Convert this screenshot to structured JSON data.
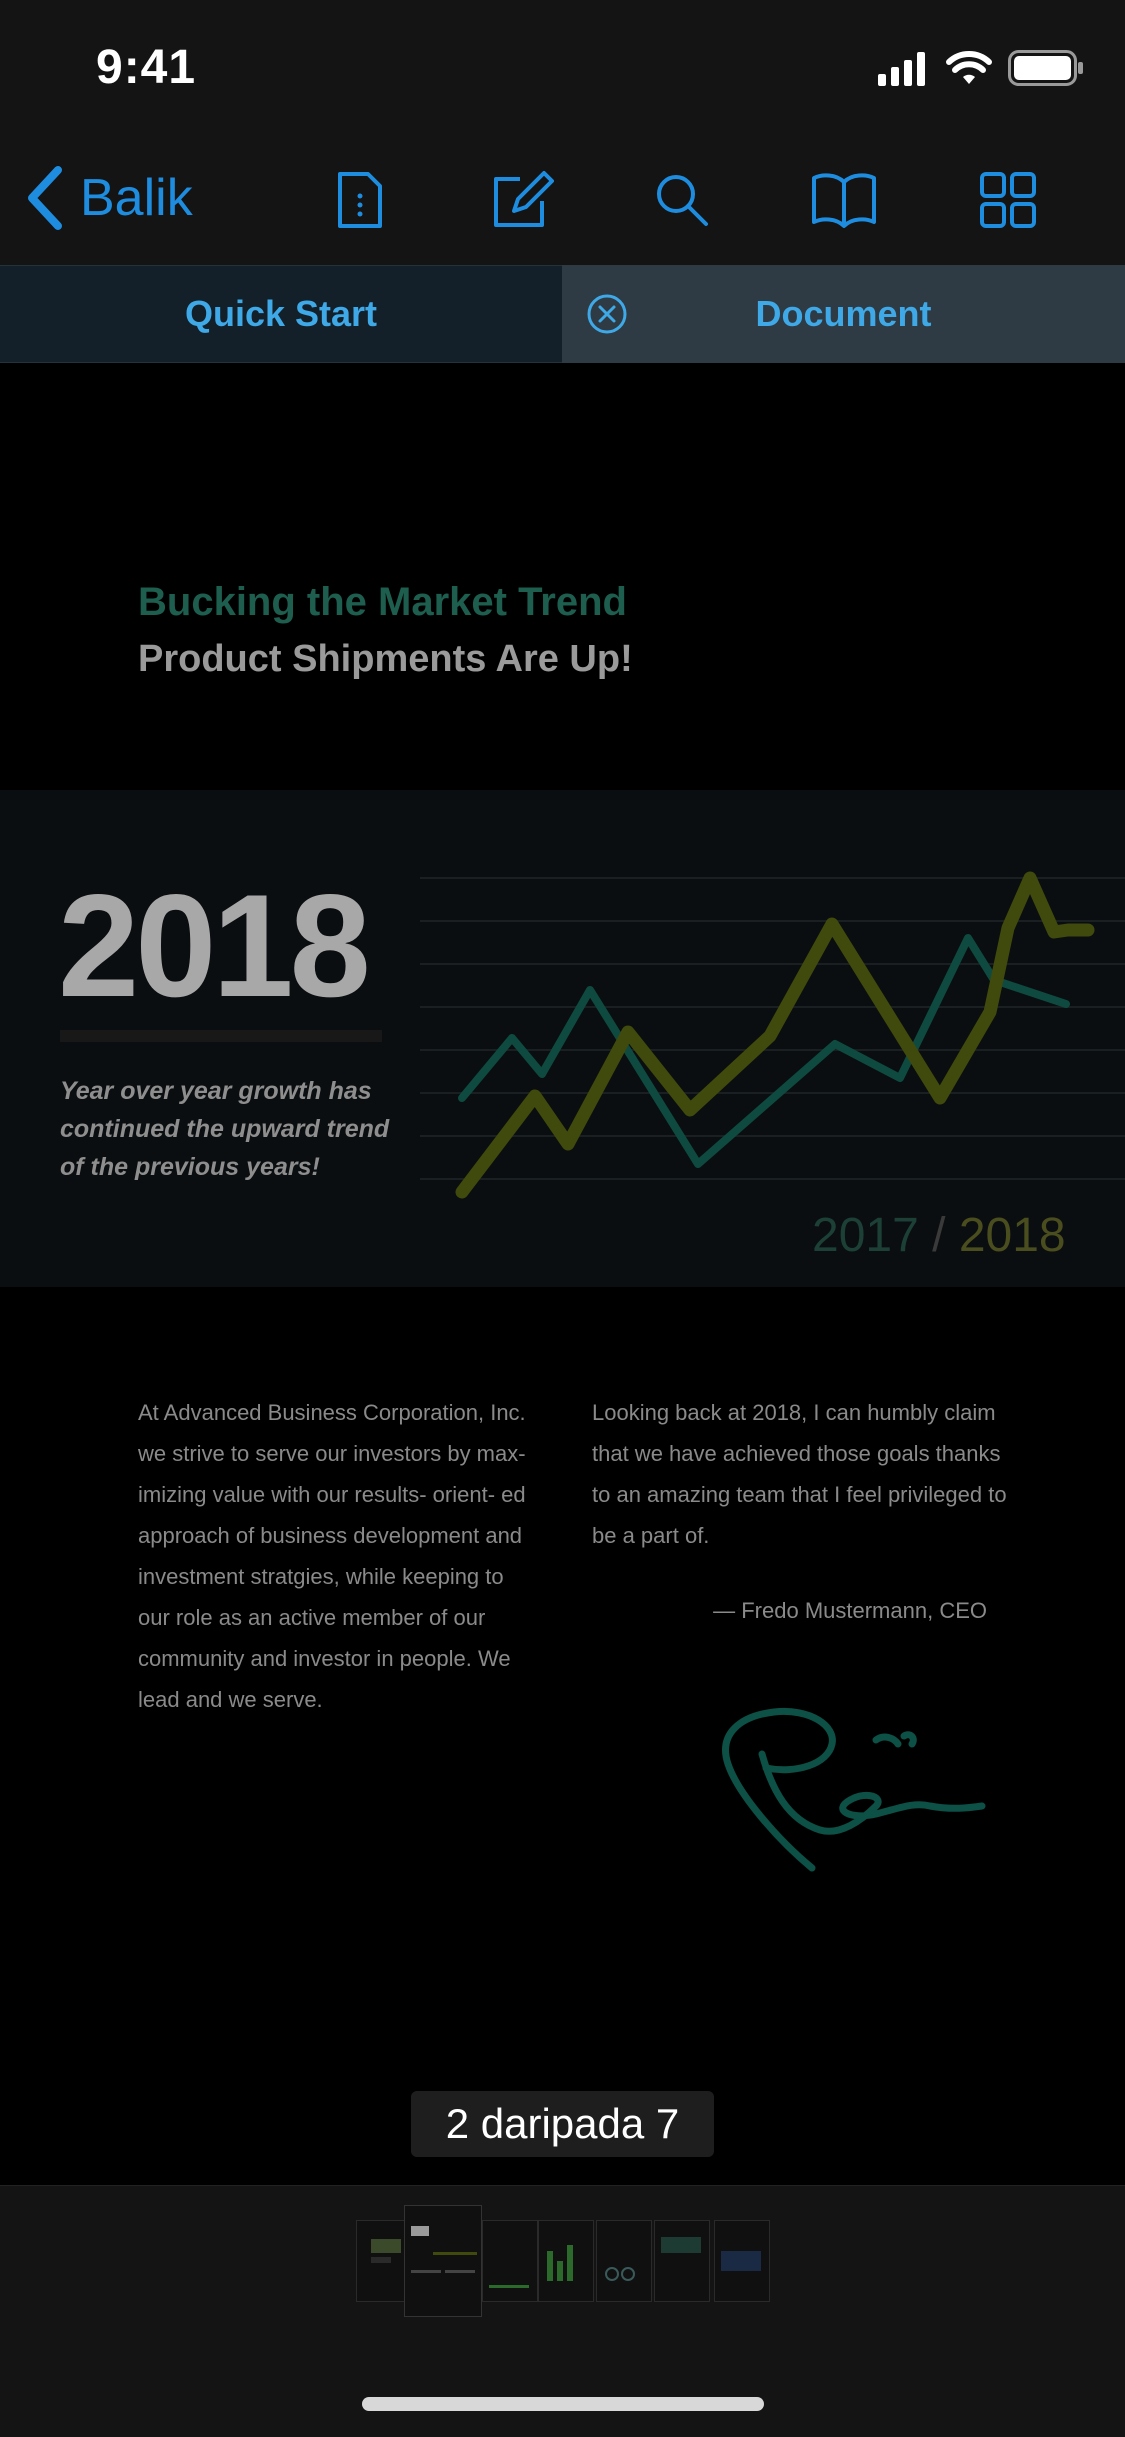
{
  "status": {
    "time": "9:41"
  },
  "nav": {
    "back_label": "Balik",
    "accent": "#1e8ddf",
    "tools": [
      "document-icon",
      "edit-icon",
      "search-icon",
      "book-icon",
      "grid-icon"
    ]
  },
  "tabs": [
    {
      "label": "Quick Start"
    },
    {
      "label": "Document"
    }
  ],
  "doc": {
    "title": "Bucking the Market Trend",
    "subtitle": "Product Shipments Are Up!",
    "year": "2018",
    "tagline": "Year over year growth has continued the upward trend of the previous years!",
    "legend_a": "2017",
    "legend_sep": "/",
    "legend_b": "2018",
    "col1": "At Advanced Business Corporation, Inc. we strive to serve our investors  by max- imizing value with our results- orient- ed approach of business development and investment stratgies, while keeping to our role as an active member of our community and investor in people. We lead and we serve.",
    "col2": "Looking back at 2018, I can humbly claim that we have achieved those goals thanks to an amazing team that I feel privileged to be a part of.",
    "signature_name": "— Fredo Mustermann, CEO"
  },
  "page_indicator": "2 daripada 7",
  "thumbnails": {
    "count": 7,
    "active_index": 1
  }
}
